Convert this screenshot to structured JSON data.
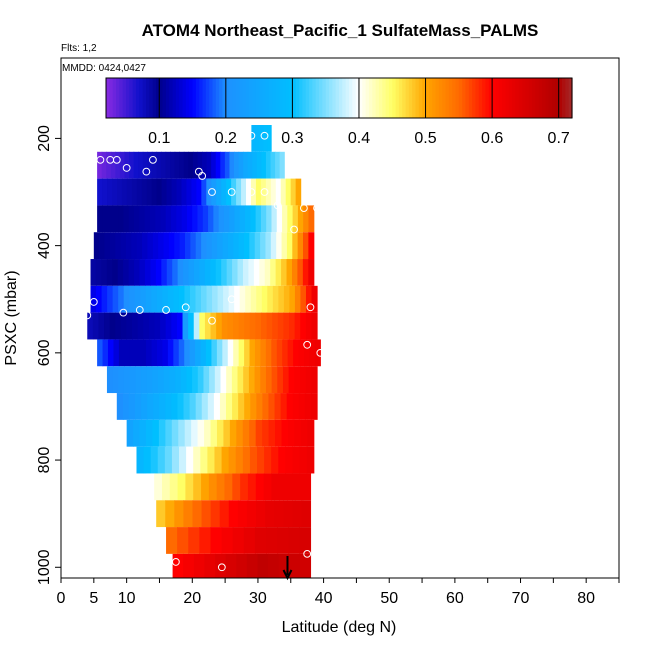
{
  "chart_data": {
    "type": "heatmap",
    "title": "ATOM4 Northeast_Pacific_1 SulfateMass_PALMS",
    "flights_label": "Flts: 1,2",
    "mmdd_label": "MMDD: 0424,0427",
    "xlabel": "Latitude (deg N)",
    "ylabel": "PSXC (mbar)",
    "xlim": [
      0,
      85
    ],
    "ylim": [
      1020,
      50
    ],
    "y_reversed": true,
    "x_ticks": [
      0,
      5,
      10,
      20,
      30,
      40,
      50,
      60,
      70,
      80
    ],
    "x_tick_labels": [
      "0",
      "5",
      "10",
      "20",
      "30",
      "40",
      "50",
      "60",
      "70",
      "80"
    ],
    "y_ticks": [
      200,
      400,
      600,
      800,
      1000
    ],
    "y_tick_labels": [
      "200",
      "400",
      "600",
      "800",
      "1000"
    ],
    "colorbar": {
      "min": 0.02,
      "max": 0.72,
      "ticks": [
        0.1,
        0.2,
        0.3,
        0.4,
        0.5,
        0.6,
        0.7
      ],
      "tick_labels": [
        "0.1",
        "0.2",
        "0.3",
        "0.4",
        "0.5",
        "0.6",
        "0.7"
      ],
      "stops": [
        {
          "v": 0.02,
          "c": "#8a2be2"
        },
        {
          "v": 0.07,
          "c": "#1010cc"
        },
        {
          "v": 0.1,
          "c": "#00008b"
        },
        {
          "v": 0.15,
          "c": "#0000ff"
        },
        {
          "v": 0.2,
          "c": "#1e90ff"
        },
        {
          "v": 0.3,
          "c": "#00bfff"
        },
        {
          "v": 0.4,
          "c": "#ffffff"
        },
        {
          "v": 0.45,
          "c": "#ffff66"
        },
        {
          "v": 0.5,
          "c": "#ffa500"
        },
        {
          "v": 0.55,
          "c": "#ff6a00"
        },
        {
          "v": 0.6,
          "c": "#ff0000"
        },
        {
          "v": 0.7,
          "c": "#b00000"
        },
        {
          "v": 0.72,
          "c": "#a52a2a"
        }
      ]
    },
    "layers": [
      {
        "p_top": 175,
        "p_bot": 225,
        "lat_start": 29,
        "lat_end": 32,
        "vals": [
          0.28,
          0.3
        ]
      },
      {
        "p_top": 225,
        "p_bot": 275,
        "lat_start": 5.5,
        "lat_end": 34,
        "vals": [
          0.03,
          0.05,
          0.07,
          0.08,
          0.09,
          0.1,
          0.12,
          0.18,
          0.25,
          0.3,
          0.35
        ]
      },
      {
        "p_top": 275,
        "p_bot": 325,
        "lat_start": 5.5,
        "lat_end": 36.5,
        "vals": [
          0.07,
          0.08,
          0.09,
          0.1,
          0.12,
          0.15,
          0.25,
          0.35,
          0.45,
          0.4,
          0.5
        ]
      },
      {
        "p_top": 325,
        "p_bot": 375,
        "lat_start": 5.5,
        "lat_end": 38.5,
        "vals": [
          0.1,
          0.1,
          0.11,
          0.12,
          0.14,
          0.17,
          0.22,
          0.28,
          0.35,
          0.45,
          0.55
        ]
      },
      {
        "p_top": 375,
        "p_bot": 425,
        "lat_start": 5,
        "lat_end": 38.5,
        "vals": [
          0.1,
          0.11,
          0.12,
          0.14,
          0.16,
          0.2,
          0.25,
          0.3,
          0.36,
          0.45,
          0.6
        ]
      },
      {
        "p_top": 425,
        "p_bot": 475,
        "lat_start": 4.5,
        "lat_end": 38.5,
        "vals": [
          0.09,
          0.1,
          0.12,
          0.15,
          0.2,
          0.26,
          0.32,
          0.38,
          0.42,
          0.5,
          0.62
        ]
      },
      {
        "p_top": 475,
        "p_bot": 525,
        "lat_start": 4.5,
        "lat_end": 39,
        "vals": [
          0.14,
          0.18,
          0.22,
          0.26,
          0.3,
          0.34,
          0.38,
          0.42,
          0.46,
          0.5,
          0.62
        ]
      },
      {
        "p_top": 525,
        "p_bot": 575,
        "lat_start": 4,
        "lat_end": 39,
        "vals": [
          0.08,
          0.1,
          0.11,
          0.12,
          0.15,
          0.45,
          0.52,
          0.54,
          0.56,
          0.58,
          0.62
        ]
      },
      {
        "p_top": 575,
        "p_bot": 625,
        "lat_start": 5.5,
        "lat_end": 39.5,
        "vals": [
          0.18,
          0.12,
          0.12,
          0.14,
          0.2,
          0.3,
          0.4,
          0.5,
          0.56,
          0.6,
          0.62
        ]
      },
      {
        "p_top": 625,
        "p_bot": 675,
        "lat_start": 7,
        "lat_end": 39,
        "vals": [
          0.2,
          0.22,
          0.24,
          0.27,
          0.32,
          0.4,
          0.48,
          0.55,
          0.6,
          0.62
        ]
      },
      {
        "p_top": 675,
        "p_bot": 725,
        "lat_start": 8.5,
        "lat_end": 39,
        "vals": [
          0.2,
          0.24,
          0.28,
          0.33,
          0.4,
          0.48,
          0.55,
          0.6,
          0.62
        ]
      },
      {
        "p_top": 725,
        "p_bot": 775,
        "lat_start": 10,
        "lat_end": 38.5,
        "vals": [
          0.24,
          0.3,
          0.36,
          0.42,
          0.5,
          0.57,
          0.6,
          0.62
        ]
      },
      {
        "p_top": 775,
        "p_bot": 825,
        "lat_start": 11.5,
        "lat_end": 38.5,
        "vals": [
          0.28,
          0.34,
          0.42,
          0.5,
          0.56,
          0.6,
          0.62
        ]
      },
      {
        "p_top": 825,
        "p_bot": 875,
        "lat_start": 13,
        "lat_end": 38,
        "vals": [
          0.4,
          0.45,
          0.52,
          0.58,
          0.62,
          0.62
        ]
      },
      {
        "p_top": 875,
        "p_bot": 925,
        "lat_start": 14.5,
        "lat_end": 38,
        "vals": [
          0.48,
          0.55,
          0.6,
          0.63,
          0.64
        ]
      },
      {
        "p_top": 925,
        "p_bot": 975,
        "lat_start": 16,
        "lat_end": 38,
        "vals": [
          0.55,
          0.6,
          0.64,
          0.65
        ]
      },
      {
        "p_top": 975,
        "p_bot": 1020,
        "lat_start": 17,
        "lat_end": 38,
        "vals": [
          0.6,
          0.64,
          0.68,
          0.66
        ]
      }
    ],
    "points": [
      {
        "lat": 6,
        "p": 240
      },
      {
        "lat": 7.5,
        "p": 240
      },
      {
        "lat": 8.5,
        "p": 240
      },
      {
        "lat": 10,
        "p": 255
      },
      {
        "lat": 13,
        "p": 262
      },
      {
        "lat": 14,
        "p": 240
      },
      {
        "lat": 21,
        "p": 262
      },
      {
        "lat": 21.5,
        "p": 270
      },
      {
        "lat": 23,
        "p": 300
      },
      {
        "lat": 26,
        "p": 300
      },
      {
        "lat": 29,
        "p": 195
      },
      {
        "lat": 31,
        "p": 195
      },
      {
        "lat": 29,
        "p": 300
      },
      {
        "lat": 31,
        "p": 300
      },
      {
        "lat": 33,
        "p": 325
      },
      {
        "lat": 35.5,
        "p": 370
      },
      {
        "lat": 37,
        "p": 330
      },
      {
        "lat": 39,
        "p": 330
      },
      {
        "lat": 5,
        "p": 505
      },
      {
        "lat": 4,
        "p": 530
      },
      {
        "lat": 9.5,
        "p": 525
      },
      {
        "lat": 12,
        "p": 520
      },
      {
        "lat": 16,
        "p": 520
      },
      {
        "lat": 19,
        "p": 515
      },
      {
        "lat": 23,
        "p": 540
      },
      {
        "lat": 26,
        "p": 500
      },
      {
        "lat": 38,
        "p": 515
      },
      {
        "lat": 37.5,
        "p": 585
      },
      {
        "lat": 39.5,
        "p": 600
      },
      {
        "lat": 17.5,
        "p": 990
      },
      {
        "lat": 24.5,
        "p": 1000
      },
      {
        "lat": 37.5,
        "p": 975
      }
    ],
    "arrow_lat": 34.5
  }
}
